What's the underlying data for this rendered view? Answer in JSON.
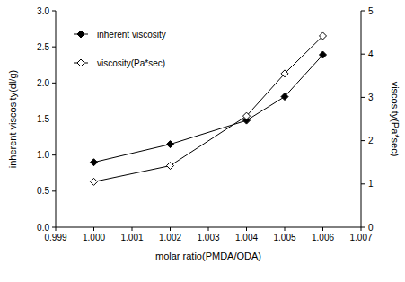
{
  "chart_data": {
    "type": "line",
    "x_label": "molar ratio(PMDA/ODA)",
    "y_label": "inherent viscosity(dl/g)",
    "y2_label": "viscosity(Pa*sec)",
    "x": [
      1.0,
      1.002,
      1.004,
      1.005,
      1.006
    ],
    "series": [
      {
        "name": "inherent viscosity",
        "color": "#000000",
        "marker": "diamond",
        "line_style": "solid",
        "values": [
          0.9,
          1.15,
          1.48,
          1.81,
          2.39
        ]
      },
      {
        "name": "viscosity(Pa*sec)",
        "color": "#000000",
        "marker": "diamond-open",
        "line_style": "solid",
        "axis": "y2",
        "values": [
          1.05,
          1.42,
          2.57,
          3.55,
          4.42
        ]
      }
    ],
    "xlim": [
      0.999,
      1.007
    ],
    "xticks": [
      {
        "value": 0.999,
        "label": "0.999"
      },
      {
        "value": 1.0,
        "label": "1.000"
      },
      {
        "value": 1.001,
        "label": "1.001"
      },
      {
        "value": 1.002,
        "label": "1.002"
      },
      {
        "value": 1.003,
        "label": "1.003"
      },
      {
        "value": 1.004,
        "label": "1.004"
      },
      {
        "value": 1.005,
        "label": "1.005"
      },
      {
        "value": 1.006,
        "label": "1.006"
      },
      {
        "value": 1.007,
        "label": "1.007"
      }
    ],
    "ylim": [
      0,
      3
    ],
    "yticks": [
      {
        "value": 0,
        "label": "0.0"
      },
      {
        "value": 0.5,
        "label": "0.5"
      },
      {
        "value": 1,
        "label": "1.0"
      },
      {
        "value": 1.5,
        "label": "1.5"
      },
      {
        "value": 2,
        "label": "2.0"
      },
      {
        "value": 2.5,
        "label": "2.5"
      },
      {
        "value": 3,
        "label": "3.0"
      }
    ],
    "y2lim": [
      0,
      5
    ],
    "y2ticks": [
      0,
      1,
      2,
      3,
      4,
      5
    ],
    "legend": "upper left",
    "grid": false
  }
}
